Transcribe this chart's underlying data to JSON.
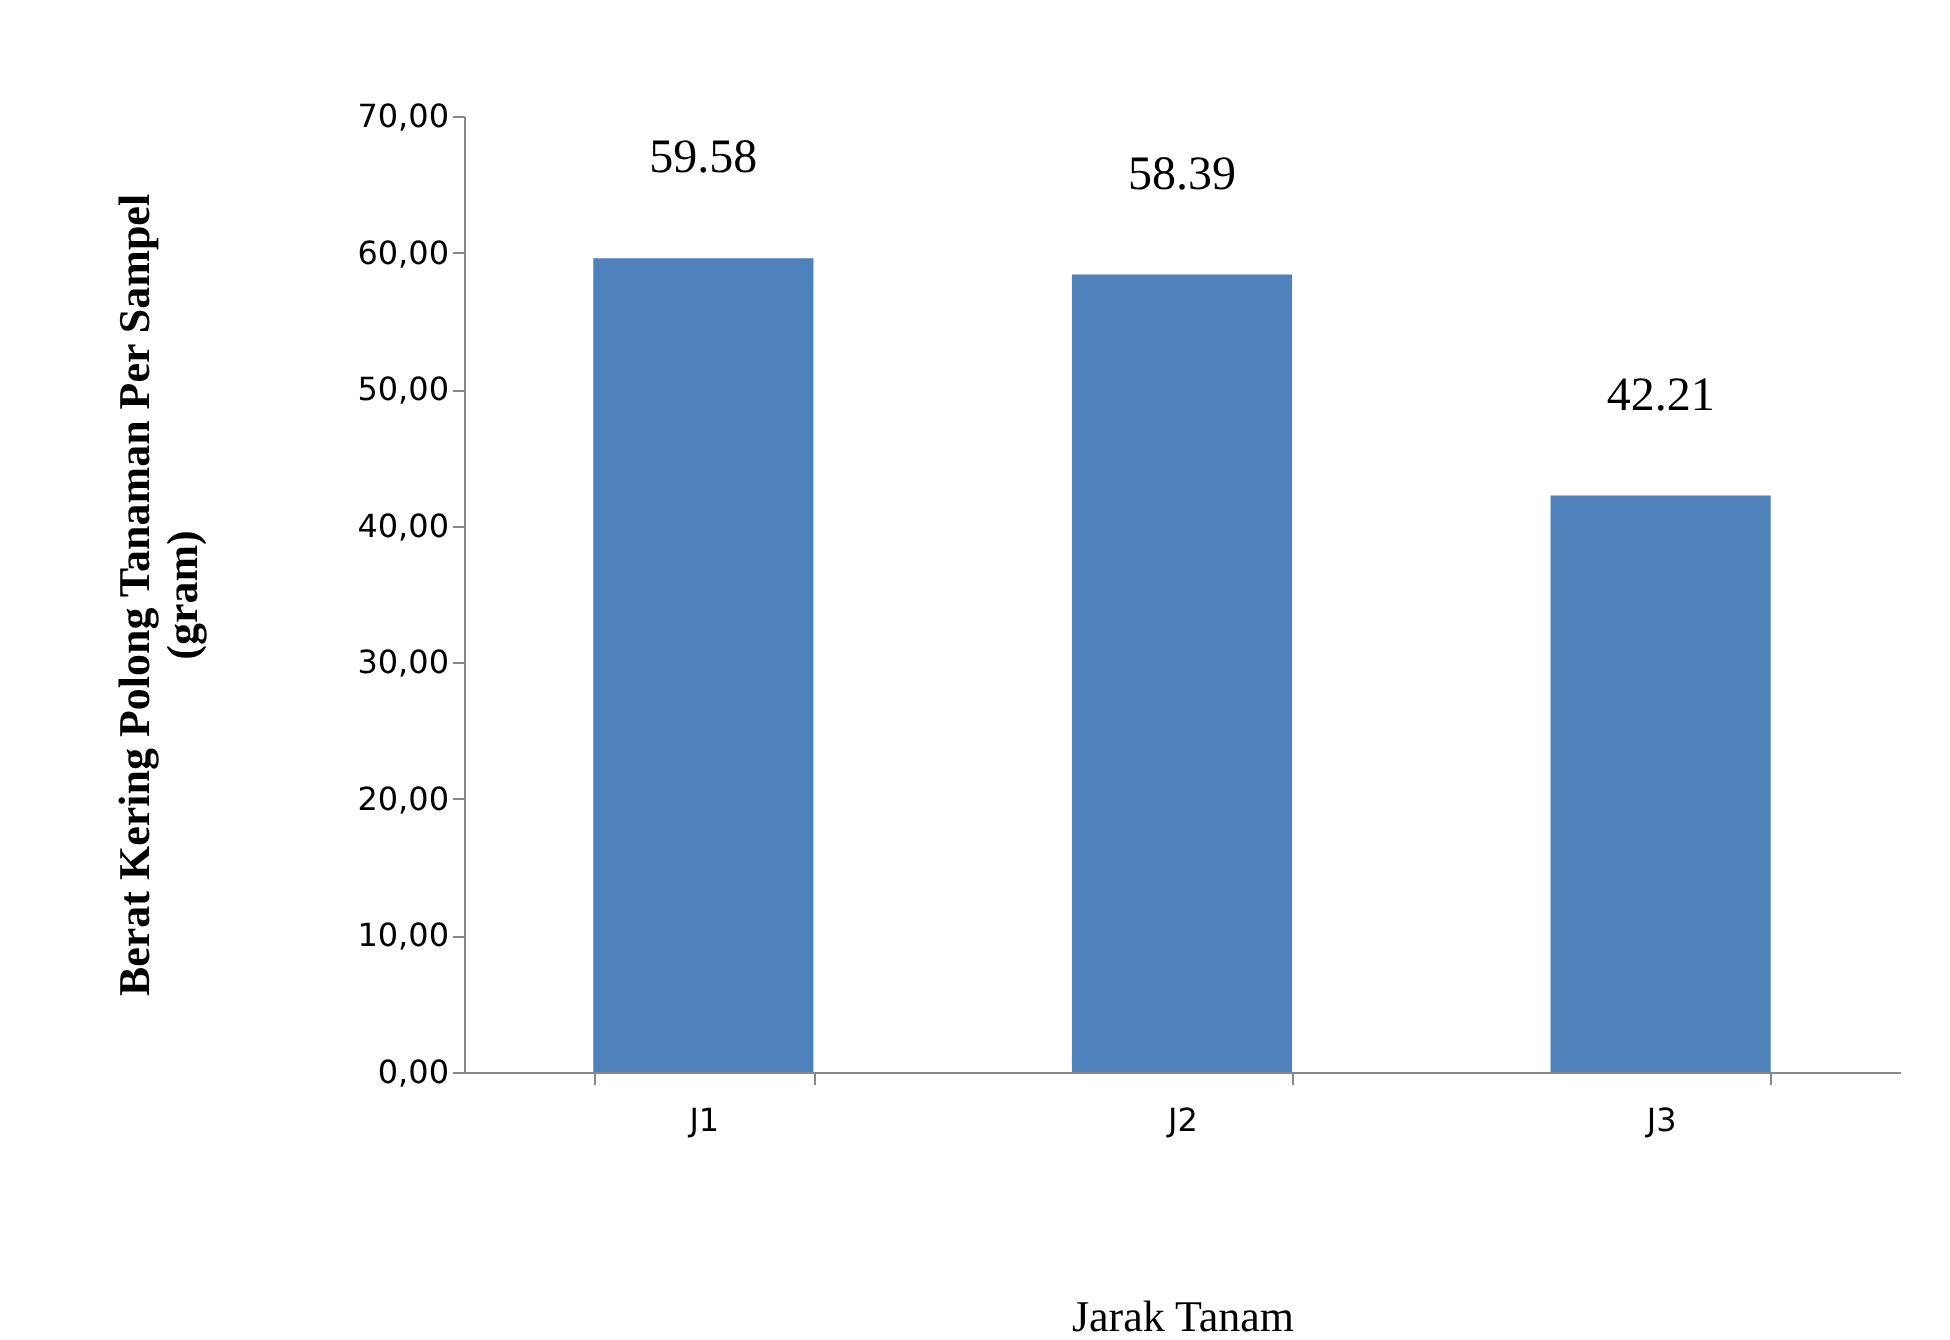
{
  "chart_data": {
    "type": "bar",
    "xlabel": "Jarak Tanam",
    "ylabel": "Berat Kering Polong Tanaman Per  Sampel\n(gram)",
    "categories": [
      "J1",
      "J2",
      "J3"
    ],
    "values": [
      59.58,
      58.39,
      42.21
    ],
    "color": "#4f81bd",
    "ylim": [
      0,
      70
    ],
    "yticks": [
      {
        "value": 0,
        "label": "0,00"
      },
      {
        "value": 10,
        "label": "10,00"
      },
      {
        "value": 20,
        "label": "20,00"
      },
      {
        "value": 30,
        "label": "30,00"
      },
      {
        "value": 40,
        "label": "40,00"
      },
      {
        "value": 50,
        "label": "50,00"
      },
      {
        "value": 60,
        "label": "60,00"
      },
      {
        "value": 70,
        "label": "70,00"
      }
    ],
    "data_labels": true,
    "grid": false
  }
}
